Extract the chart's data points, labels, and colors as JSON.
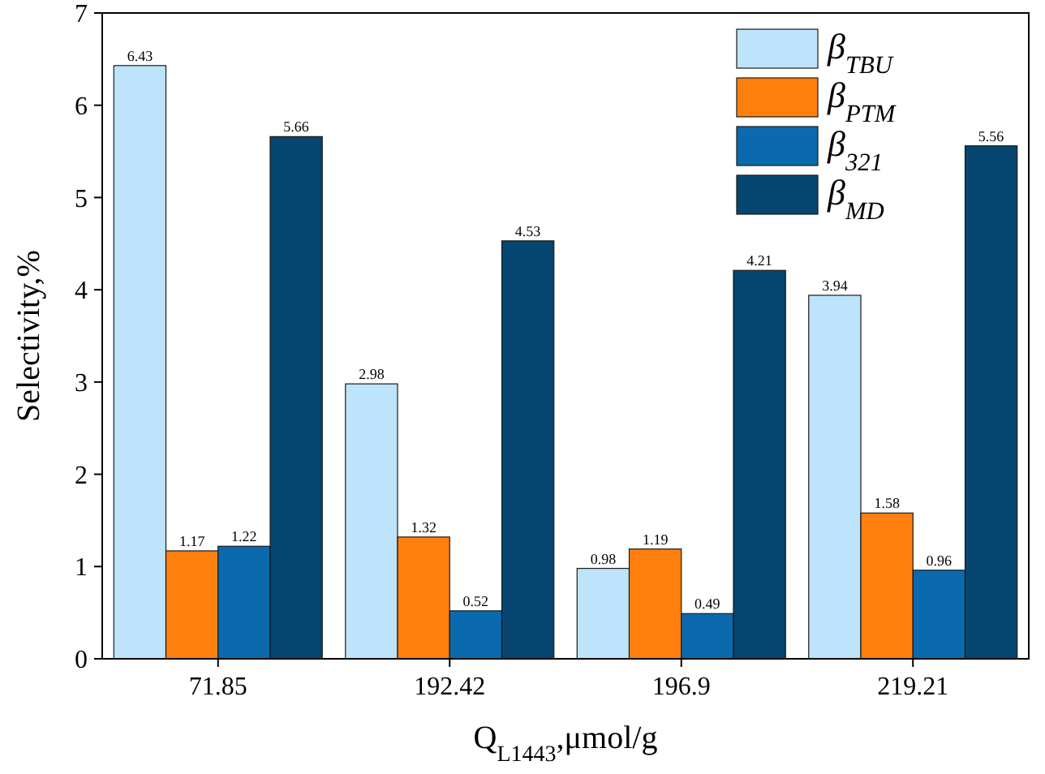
{
  "chart_data": {
    "type": "bar",
    "xlabel": "Q$_{L1443}$,μmol/g",
    "ylabel": "Selectivity,%",
    "categories": [
      "71.85",
      "192.42",
      "196.9",
      "219.21"
    ],
    "series": [
      {
        "name": "β$_{TBU}$",
        "color": "#bde4fb",
        "values": [
          6.43,
          2.98,
          0.98,
          3.94
        ]
      },
      {
        "name": "β$_{PTM}$",
        "color": "#ff7f0e",
        "values": [
          1.17,
          1.32,
          1.19,
          1.58
        ]
      },
      {
        "name": "β$_{321}$",
        "color": "#0a6aad",
        "values": [
          1.22,
          0.52,
          0.49,
          0.96
        ]
      },
      {
        "name": "β$_{MD}$",
        "color": "#064570",
        "values": [
          5.66,
          4.53,
          4.21,
          5.56
        ]
      }
    ],
    "ylim": [
      0,
      7
    ],
    "yticks": [
      0,
      1,
      2,
      3,
      4,
      5,
      6,
      7
    ],
    "data_labels": true,
    "legend": "top right",
    "grid": false
  }
}
